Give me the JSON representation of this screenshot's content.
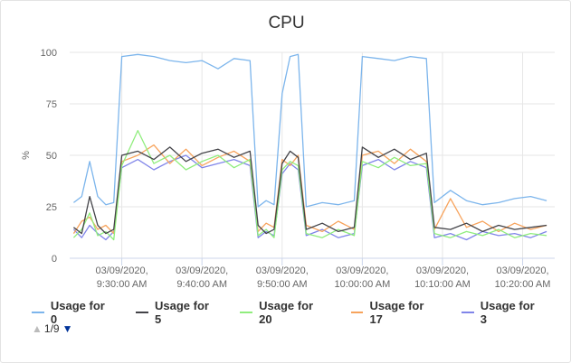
{
  "chart": {
    "title": "CPU"
  },
  "chart_data": {
    "type": "line",
    "title": "CPU",
    "xlabel": "",
    "ylabel": "%",
    "ylim": [
      0,
      100
    ],
    "yticks": [
      0,
      25,
      50,
      75,
      100
    ],
    "x_ticks": [
      {
        "time": "09:30",
        "line1": "03/09/2020,",
        "line2": "9:30:00 AM"
      },
      {
        "time": "09:40",
        "line1": "03/09/2020,",
        "line2": "9:40:00 AM"
      },
      {
        "time": "09:50",
        "line1": "03/09/2020,",
        "line2": "9:50:00 AM"
      },
      {
        "time": "10:00",
        "line1": "03/09/2020,",
        "line2": "10:00:00 AM"
      },
      {
        "time": "10:10",
        "line1": "03/09/2020,",
        "line2": "10:10:00 AM"
      },
      {
        "time": "10:20",
        "line1": "03/09/2020,",
        "line2": "10:20:00 AM"
      }
    ],
    "x_range": [
      "09:23:30",
      "10:24:00"
    ],
    "grid": true,
    "legend_position": "bottom",
    "series": [
      {
        "name": "Usage for 0",
        "color": "#7cb5ec",
        "values": [
          [
            "09:24",
            27
          ],
          [
            "09:25",
            30
          ],
          [
            "09:26",
            47
          ],
          [
            "09:27",
            30
          ],
          [
            "09:28",
            26
          ],
          [
            "09:29",
            27
          ],
          [
            "09:30",
            98
          ],
          [
            "09:32",
            99
          ],
          [
            "09:34",
            98
          ],
          [
            "09:36",
            96
          ],
          [
            "09:38",
            95
          ],
          [
            "09:40",
            96
          ],
          [
            "09:42",
            92
          ],
          [
            "09:44",
            97
          ],
          [
            "09:46",
            96
          ],
          [
            "09:47",
            25
          ],
          [
            "09:48",
            28
          ],
          [
            "09:49",
            26
          ],
          [
            "09:50",
            80
          ],
          [
            "09:51",
            98
          ],
          [
            "09:52",
            99
          ],
          [
            "09:53",
            25
          ],
          [
            "09:55",
            27
          ],
          [
            "09:57",
            26
          ],
          [
            "09:59",
            28
          ],
          [
            "10:00",
            98
          ],
          [
            "10:02",
            97
          ],
          [
            "10:04",
            96
          ],
          [
            "10:06",
            98
          ],
          [
            "10:08",
            97
          ],
          [
            "10:09",
            27
          ],
          [
            "10:11",
            33
          ],
          [
            "10:13",
            28
          ],
          [
            "10:15",
            26
          ],
          [
            "10:17",
            27
          ],
          [
            "10:19",
            29
          ],
          [
            "10:21",
            30
          ],
          [
            "10:23",
            28
          ]
        ]
      },
      {
        "name": "Usage for 5",
        "color": "#434348",
        "values": [
          [
            "09:24",
            15
          ],
          [
            "09:25",
            12
          ],
          [
            "09:26",
            30
          ],
          [
            "09:27",
            16
          ],
          [
            "09:28",
            12
          ],
          [
            "09:29",
            14
          ],
          [
            "09:30",
            50
          ],
          [
            "09:32",
            52
          ],
          [
            "09:34",
            48
          ],
          [
            "09:36",
            54
          ],
          [
            "09:38",
            47
          ],
          [
            "09:40",
            51
          ],
          [
            "09:42",
            53
          ],
          [
            "09:44",
            49
          ],
          [
            "09:46",
            52
          ],
          [
            "09:47",
            16
          ],
          [
            "09:48",
            12
          ],
          [
            "09:49",
            14
          ],
          [
            "09:50",
            46
          ],
          [
            "09:51",
            52
          ],
          [
            "09:52",
            49
          ],
          [
            "09:53",
            14
          ],
          [
            "09:55",
            17
          ],
          [
            "09:57",
            13
          ],
          [
            "09:59",
            15
          ],
          [
            "10:00",
            54
          ],
          [
            "10:02",
            49
          ],
          [
            "10:04",
            53
          ],
          [
            "10:06",
            48
          ],
          [
            "10:08",
            51
          ],
          [
            "10:09",
            15
          ],
          [
            "10:11",
            14
          ],
          [
            "10:13",
            17
          ],
          [
            "10:15",
            13
          ],
          [
            "10:17",
            16
          ],
          [
            "10:19",
            14
          ],
          [
            "10:21",
            15
          ],
          [
            "10:23",
            16
          ]
        ]
      },
      {
        "name": "Usage for 20",
        "color": "#90ed7d",
        "values": [
          [
            "09:24",
            10
          ],
          [
            "09:25",
            14
          ],
          [
            "09:26",
            22
          ],
          [
            "09:27",
            11
          ],
          [
            "09:28",
            13
          ],
          [
            "09:29",
            9
          ],
          [
            "09:30",
            45
          ],
          [
            "09:32",
            62
          ],
          [
            "09:34",
            46
          ],
          [
            "09:36",
            50
          ],
          [
            "09:38",
            43
          ],
          [
            "09:40",
            47
          ],
          [
            "09:42",
            50
          ],
          [
            "09:44",
            44
          ],
          [
            "09:46",
            48
          ],
          [
            "09:47",
            11
          ],
          [
            "09:48",
            14
          ],
          [
            "09:49",
            10
          ],
          [
            "09:50",
            43
          ],
          [
            "09:51",
            47
          ],
          [
            "09:52",
            45
          ],
          [
            "09:53",
            12
          ],
          [
            "09:55",
            10
          ],
          [
            "09:57",
            14
          ],
          [
            "09:59",
            11
          ],
          [
            "10:00",
            47
          ],
          [
            "10:02",
            44
          ],
          [
            "10:04",
            49
          ],
          [
            "10:06",
            45
          ],
          [
            "10:08",
            46
          ],
          [
            "10:09",
            12
          ],
          [
            "10:11",
            10
          ],
          [
            "10:13",
            13
          ],
          [
            "10:15",
            11
          ],
          [
            "10:17",
            14
          ],
          [
            "10:19",
            10
          ],
          [
            "10:21",
            12
          ],
          [
            "10:23",
            11
          ]
        ]
      },
      {
        "name": "Usage for 17",
        "color": "#f7a35c",
        "values": [
          [
            "09:24",
            12
          ],
          [
            "09:25",
            18
          ],
          [
            "09:26",
            20
          ],
          [
            "09:27",
            14
          ],
          [
            "09:28",
            16
          ],
          [
            "09:29",
            12
          ],
          [
            "09:30",
            47
          ],
          [
            "09:32",
            50
          ],
          [
            "09:34",
            55
          ],
          [
            "09:36",
            46
          ],
          [
            "09:38",
            53
          ],
          [
            "09:40",
            45
          ],
          [
            "09:42",
            49
          ],
          [
            "09:44",
            52
          ],
          [
            "09:46",
            47
          ],
          [
            "09:47",
            13
          ],
          [
            "09:48",
            17
          ],
          [
            "09:49",
            15
          ],
          [
            "09:50",
            48
          ],
          [
            "09:51",
            45
          ],
          [
            "09:52",
            50
          ],
          [
            "09:53",
            16
          ],
          [
            "09:55",
            13
          ],
          [
            "09:57",
            18
          ],
          [
            "09:59",
            14
          ],
          [
            "10:00",
            50
          ],
          [
            "10:02",
            52
          ],
          [
            "10:04",
            46
          ],
          [
            "10:06",
            53
          ],
          [
            "10:08",
            47
          ],
          [
            "10:09",
            14
          ],
          [
            "10:11",
            29
          ],
          [
            "10:13",
            15
          ],
          [
            "10:15",
            18
          ],
          [
            "10:17",
            13
          ],
          [
            "10:19",
            17
          ],
          [
            "10:21",
            14
          ],
          [
            "10:23",
            16
          ]
        ]
      },
      {
        "name": "Usage for 3",
        "color": "#8085e9",
        "values": [
          [
            "09:24",
            14
          ],
          [
            "09:25",
            10
          ],
          [
            "09:26",
            16
          ],
          [
            "09:27",
            12
          ],
          [
            "09:28",
            9
          ],
          [
            "09:29",
            13
          ],
          [
            "09:30",
            44
          ],
          [
            "09:32",
            48
          ],
          [
            "09:34",
            43
          ],
          [
            "09:36",
            47
          ],
          [
            "09:38",
            50
          ],
          [
            "09:40",
            44
          ],
          [
            "09:42",
            46
          ],
          [
            "09:44",
            48
          ],
          [
            "09:46",
            45
          ],
          [
            "09:47",
            10
          ],
          [
            "09:48",
            13
          ],
          [
            "09:49",
            11
          ],
          [
            "09:50",
            41
          ],
          [
            "09:51",
            46
          ],
          [
            "09:52",
            43
          ],
          [
            "09:53",
            11
          ],
          [
            "09:55",
            14
          ],
          [
            "09:57",
            10
          ],
          [
            "09:59",
            12
          ],
          [
            "10:00",
            45
          ],
          [
            "10:02",
            48
          ],
          [
            "10:04",
            43
          ],
          [
            "10:06",
            47
          ],
          [
            "10:08",
            44
          ],
          [
            "10:09",
            10
          ],
          [
            "10:11",
            12
          ],
          [
            "10:13",
            9
          ],
          [
            "10:15",
            13
          ],
          [
            "10:17",
            11
          ],
          [
            "10:19",
            12
          ],
          [
            "10:21",
            10
          ],
          [
            "10:23",
            13
          ]
        ]
      }
    ]
  },
  "legend": {
    "items": [
      {
        "label": "Usage for 0",
        "color": "#7cb5ec"
      },
      {
        "label": "Usage for 5",
        "color": "#434348"
      },
      {
        "label": "Usage for 20",
        "color": "#90ed7d"
      },
      {
        "label": "Usage for 17",
        "color": "#f7a35c"
      },
      {
        "label": "Usage for 3",
        "color": "#8085e9"
      }
    ],
    "pager_text": "1/9",
    "pager_up_icon": "arrow-up-icon",
    "pager_down_icon": "arrow-down-icon"
  }
}
